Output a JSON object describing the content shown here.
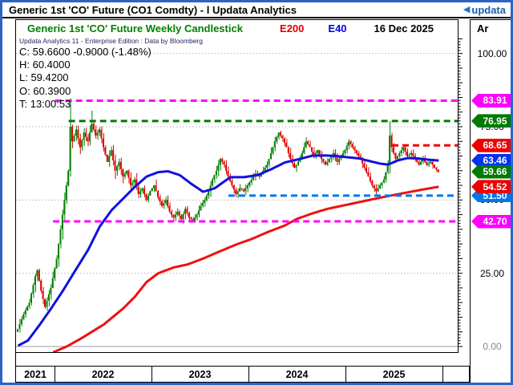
{
  "window": {
    "title": "Generic 1st 'CO' Future (CO1 Comdty) - l Updata Analytics",
    "logo_icon": "left-triangle-icon",
    "logo_text": "updata"
  },
  "header": {
    "chart_title": "Generic 1st 'CO' Future Weekly Candlestick",
    "indicator_1": "E200",
    "indicator_2": "E40",
    "date": "16 Dec 2025",
    "corner_label": "Ar"
  },
  "info_panel": {
    "source_line": "Updata Analytics 11 - Enterprise Edition : Data by Bloomberg",
    "close_line": "C: 59.6600  -0.9000 (-1.48%)",
    "high_line": "H: 60.4000",
    "low_line": "L: 59.4200",
    "open_line": "O: 60.3900",
    "time_line": "T: 13:00:53"
  },
  "x_axis": {
    "years": [
      "2021",
      "2022",
      "2023",
      "2024",
      "2025"
    ]
  },
  "y_axis": {
    "tick_labels": [
      "100.00",
      "75.00",
      "50.00",
      "25.00",
      "0.00"
    ],
    "tick_values": [
      100,
      75,
      50,
      25,
      0
    ],
    "zero_color": "#8a8a8a",
    "normal_color": "#000000"
  },
  "price_tags": [
    {
      "label": "83.91",
      "value": 83.91,
      "color": "#ff00ff",
      "z": 4
    },
    {
      "label": "76.95",
      "value": 76.95,
      "color": "#007a00",
      "z": 4
    },
    {
      "label": "68.65",
      "value": 68.65,
      "color": "#ee0000",
      "z": 4
    },
    {
      "label": "63.46",
      "value": 63.46,
      "color": "#0033ee",
      "z": 3
    },
    {
      "label": "59.66",
      "value": 59.66,
      "color": "#007a00",
      "z": 5
    },
    {
      "label": "54.52",
      "value": 54.52,
      "color": "#ee0000",
      "z": 5
    },
    {
      "label": "51.50",
      "value": 51.5,
      "color": "#0077ee",
      "z": 2
    },
    {
      "label": "42.70",
      "value": 42.7,
      "color": "#ff00ff",
      "z": 4
    }
  ],
  "chart_data": {
    "type": "candlestick",
    "title": "Generic 1st 'CO' Future Weekly Candlestick",
    "instrument": "CO1 Comdty",
    "timeframe": "weekly",
    "weeks_total": 217,
    "ylim": [
      -2,
      106
    ],
    "year_start_weeks": [
      18.5,
      68.3,
      118.1,
      167.9,
      218.0
    ],
    "up_color": "#008000",
    "down_color": "#dd0000",
    "grid_values": [
      100,
      75,
      50,
      25
    ],
    "zero_line_value": 0,
    "close_anchors": [
      [
        0,
        6
      ],
      [
        3,
        11
      ],
      [
        6,
        15
      ],
      [
        9,
        24
      ],
      [
        10,
        26
      ],
      [
        12,
        19
      ],
      [
        14,
        13.5
      ],
      [
        17,
        20
      ],
      [
        20,
        30
      ],
      [
        23,
        45
      ],
      [
        26,
        60
      ],
      [
        27,
        75
      ],
      [
        28,
        70
      ],
      [
        30,
        74
      ],
      [
        32,
        68
      ],
      [
        34,
        73
      ],
      [
        36,
        70
      ],
      [
        38,
        76
      ],
      [
        40,
        72
      ],
      [
        42,
        74
      ],
      [
        44,
        68
      ],
      [
        46,
        63
      ],
      [
        48,
        67
      ],
      [
        50,
        60
      ],
      [
        52,
        63
      ],
      [
        54,
        58
      ],
      [
        56,
        60
      ],
      [
        58,
        55
      ],
      [
        60,
        57
      ],
      [
        62,
        52
      ],
      [
        64,
        54
      ],
      [
        66,
        50
      ],
      [
        68,
        53
      ],
      [
        70,
        55
      ],
      [
        72,
        51
      ],
      [
        74,
        48
      ],
      [
        76,
        50
      ],
      [
        78,
        46
      ],
      [
        80,
        44
      ],
      [
        82,
        46
      ],
      [
        84,
        43.5
      ],
      [
        86,
        47
      ],
      [
        88,
        44
      ],
      [
        90,
        43
      ],
      [
        92,
        45
      ],
      [
        94,
        48
      ],
      [
        96,
        50
      ],
      [
        98,
        53
      ],
      [
        100,
        57
      ],
      [
        102,
        60
      ],
      [
        104,
        64
      ],
      [
        106,
        62
      ],
      [
        108,
        58
      ],
      [
        110,
        55
      ],
      [
        112,
        52
      ],
      [
        114,
        54
      ],
      [
        116,
        53
      ],
      [
        118,
        55
      ],
      [
        120,
        57
      ],
      [
        122,
        59
      ],
      [
        124,
        58
      ],
      [
        126,
        60
      ],
      [
        128,
        62
      ],
      [
        130,
        66
      ],
      [
        132,
        70
      ],
      [
        134,
        73
      ],
      [
        136,
        71
      ],
      [
        138,
        68
      ],
      [
        140,
        64
      ],
      [
        142,
        61
      ],
      [
        144,
        63
      ],
      [
        146,
        66
      ],
      [
        148,
        70
      ],
      [
        150,
        68
      ],
      [
        152,
        65
      ],
      [
        154,
        67
      ],
      [
        156,
        64
      ],
      [
        158,
        62
      ],
      [
        160,
        64
      ],
      [
        162,
        66
      ],
      [
        164,
        63
      ],
      [
        166,
        65
      ],
      [
        168,
        67
      ],
      [
        170,
        70
      ],
      [
        172,
        68
      ],
      [
        174,
        66
      ],
      [
        176,
        64
      ],
      [
        178,
        61
      ],
      [
        180,
        58
      ],
      [
        182,
        55
      ],
      [
        184,
        53
      ],
      [
        186,
        55
      ],
      [
        188,
        57
      ],
      [
        190,
        62
      ],
      [
        191,
        72
      ],
      [
        192,
        68
      ],
      [
        194,
        64
      ],
      [
        196,
        66
      ],
      [
        198,
        68
      ],
      [
        200,
        65
      ],
      [
        202,
        66
      ],
      [
        204,
        64
      ],
      [
        206,
        62
      ],
      [
        208,
        64
      ],
      [
        210,
        62
      ],
      [
        212,
        63
      ],
      [
        214,
        61
      ],
      [
        216,
        59.66
      ]
    ],
    "bar_overrides": {
      "10": {
        "h": 26.5
      },
      "14": {
        "l": 13
      },
      "27": {
        "h": 84.6,
        "l": 58
      },
      "38": {
        "h": 80.5
      },
      "80": {
        "l": 42.7
      },
      "84": {
        "l": 42.7
      },
      "90": {
        "l": 42.7
      },
      "184": {
        "l": 51.9
      },
      "191": {
        "h": 76.9,
        "l": 59
      },
      "216": {
        "o": 60.39,
        "h": 60.4,
        "l": 59.42,
        "c": 59.66
      }
    },
    "level_lines": [
      {
        "value": 83.91,
        "color": "#ff00ff",
        "style": "dashed",
        "start_week": 19
      },
      {
        "value": 76.95,
        "color": "#007a00",
        "style": "dashed",
        "start_week": 26
      },
      {
        "value": 68.65,
        "color": "#ee0000",
        "style": "dashed",
        "start_week": 192
      },
      {
        "value": 51.5,
        "color": "#0077ee",
        "style": "dashed",
        "start_week": 108
      },
      {
        "value": 42.7,
        "color": "#ff00ff",
        "style": "dashed",
        "start_week": 18
      }
    ],
    "ema_lines": [
      {
        "name": "E40",
        "color": "#1111dd",
        "anchors": [
          [
            0,
            0.3
          ],
          [
            5,
            2
          ],
          [
            11,
            7.3
          ],
          [
            17,
            13
          ],
          [
            23,
            19
          ],
          [
            29,
            25.5
          ],
          [
            36,
            33
          ],
          [
            42,
            41
          ],
          [
            48,
            46.5
          ],
          [
            54,
            50.5
          ],
          [
            60,
            54.5
          ],
          [
            66,
            58
          ],
          [
            72,
            59.5
          ],
          [
            77,
            59.8
          ],
          [
            83,
            58.5
          ],
          [
            89,
            55.5
          ],
          [
            95,
            52.8
          ],
          [
            101,
            54
          ],
          [
            109,
            57.8
          ],
          [
            116,
            57.8
          ],
          [
            123,
            58.5
          ],
          [
            130,
            60.5
          ],
          [
            137,
            62.8
          ],
          [
            144,
            63.9
          ],
          [
            151,
            65.1
          ],
          [
            157,
            65.2
          ],
          [
            163,
            65.0
          ],
          [
            169,
            64.6
          ],
          [
            175,
            64.2
          ],
          [
            181,
            63.2
          ],
          [
            186,
            62.4
          ],
          [
            190,
            62.1
          ],
          [
            195,
            63.5
          ],
          [
            200,
            64.3
          ],
          [
            205,
            64.2
          ],
          [
            210,
            63.8
          ],
          [
            216,
            63.46
          ]
        ]
      },
      {
        "name": "E200",
        "color": "#ee1111",
        "anchors": [
          [
            18,
            -2
          ],
          [
            25,
            0
          ],
          [
            33,
            3
          ],
          [
            44,
            7.5
          ],
          [
            54,
            13
          ],
          [
            60,
            17
          ],
          [
            66,
            22
          ],
          [
            72,
            25
          ],
          [
            80,
            27
          ],
          [
            87,
            28
          ],
          [
            95,
            30
          ],
          [
            103,
            32.3
          ],
          [
            112,
            34.8
          ],
          [
            120,
            36.7
          ],
          [
            128,
            39
          ],
          [
            137,
            41.3
          ],
          [
            143,
            43.5
          ],
          [
            151,
            45.4
          ],
          [
            159,
            47
          ],
          [
            169,
            48.4
          ],
          [
            181,
            50.1
          ],
          [
            189,
            51.2
          ],
          [
            200,
            52.6
          ],
          [
            208,
            53.6
          ],
          [
            216,
            54.52
          ]
        ]
      }
    ]
  }
}
